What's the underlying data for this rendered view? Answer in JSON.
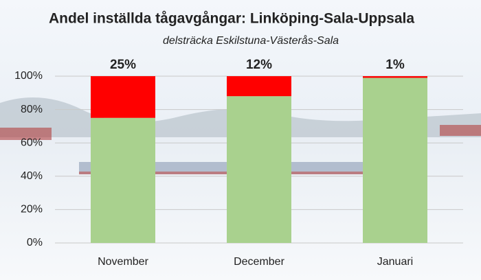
{
  "chart_data": {
    "type": "stacked_bar",
    "title": "Andel inställda tågavgångar: Linköping-Sala-Uppsala",
    "subtitle": "delsträcka Eskilstuna-Västerås-Sala",
    "categories": [
      "November",
      "December",
      "Januari"
    ],
    "series": [
      {
        "color": "#a9d18e",
        "values": [
          75,
          88,
          99
        ]
      },
      {
        "color": "#ff0000",
        "values": [
          25,
          12,
          1
        ],
        "value_labels": [
          "25%",
          "12%",
          "1%"
        ]
      }
    ],
    "ylim": [
      0,
      100
    ],
    "yticks": [
      {
        "value": 0,
        "label": "0%"
      },
      {
        "value": 20,
        "label": "20%"
      },
      {
        "value": 40,
        "label": "40%"
      },
      {
        "value": 60,
        "label": "60%"
      },
      {
        "value": 80,
        "label": "80%"
      },
      {
        "value": 100,
        "label": "100%"
      }
    ],
    "grid": true
  }
}
